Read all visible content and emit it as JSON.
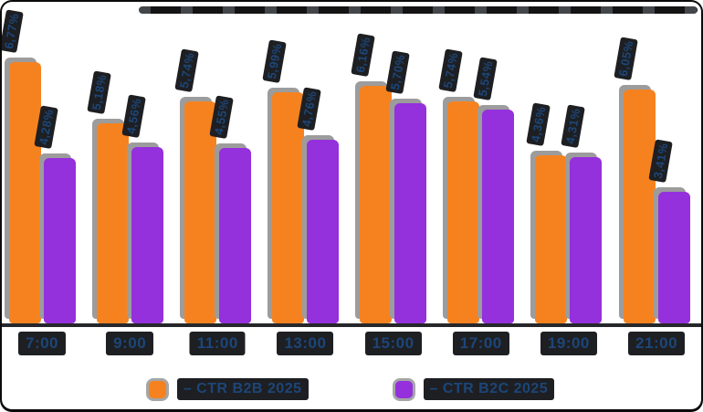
{
  "chart_data": {
    "type": "bar",
    "title": "",
    "xlabel": "",
    "ylabel": "",
    "unit": "%",
    "categories": [
      "7:00",
      "9:00",
      "11:00",
      "13:00",
      "15:00",
      "17:00",
      "19:00",
      "21:00"
    ],
    "series": [
      {
        "name": "CTR B2B 2025",
        "color": "#F6821F",
        "values": [
          6.77,
          5.18,
          5.74,
          5.99,
          6.16,
          5.74,
          4.36,
          6.05
        ],
        "labels": [
          "6,77%",
          "5,18%",
          "5,74%",
          "5,99%",
          "6,16%",
          "5,74%",
          "4,36%",
          "6,05%"
        ]
      },
      {
        "name": "CTR B2C 2025",
        "color": "#9430DC",
        "values": [
          4.28,
          4.56,
          4.55,
          4.76,
          5.7,
          5.54,
          4.31,
          3.41
        ],
        "labels": [
          "4,28%",
          "4,56%",
          "4,55%",
          "4,76%",
          "5,70%",
          "5,54%",
          "4,31%",
          "3,41%"
        ]
      }
    ],
    "ylim": [
      0,
      7
    ],
    "grid": false,
    "legend_position": "bottom"
  },
  "legend": {
    "prefix": "–",
    "items": [
      {
        "label": "– CTR B2B 2025",
        "color": "#F6821F"
      },
      {
        "label": "– CTR B2C 2025",
        "color": "#9430DC"
      }
    ]
  },
  "colors": {
    "bar_b2b": "#F6821F",
    "bar_b2c": "#9430DC",
    "label_text": "#1C4679",
    "label_box": "#1E1F22",
    "axis": "#26272A",
    "bar_shadow": "#9C9C9C",
    "frame": "#0B0B0C",
    "background": "#FFFFFF"
  }
}
